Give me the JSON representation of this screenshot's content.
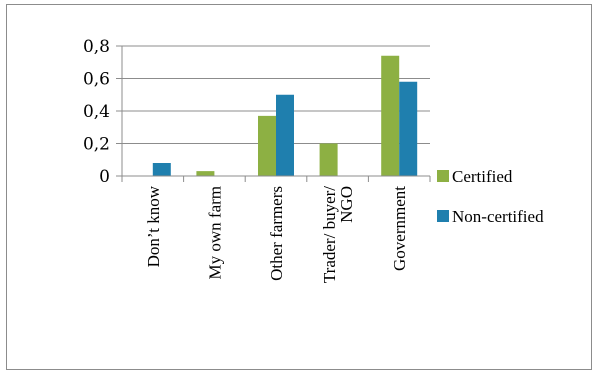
{
  "chart_data": {
    "type": "bar",
    "categories": [
      "Don’t know",
      "My own farm",
      "Other farmers",
      "Trader/ buyer/ NGO",
      "Government"
    ],
    "category_lines": [
      [
        "Don’t know"
      ],
      [
        "My own farm"
      ],
      [
        "Other farmers"
      ],
      [
        "Trader/ buyer/",
        "NGO"
      ],
      [
        "Government"
      ]
    ],
    "series": [
      {
        "name": "Certified",
        "color": "#8db043",
        "values": [
          0,
          0.03,
          0.37,
          0.2,
          0.74
        ]
      },
      {
        "name": "Non-certified",
        "color": "#1f7fae",
        "values": [
          0.08,
          0,
          0.5,
          0,
          0.58
        ]
      }
    ],
    "yticks": [
      0,
      0.2,
      0.4,
      0.6,
      0.8
    ],
    "ytick_labels": [
      "0",
      "0,2",
      "0,4",
      "0,6",
      "0,8"
    ],
    "ylim": [
      0,
      0.8
    ],
    "title": "",
    "xlabel": "",
    "ylabel": "",
    "grid": true,
    "legend": "right"
  }
}
